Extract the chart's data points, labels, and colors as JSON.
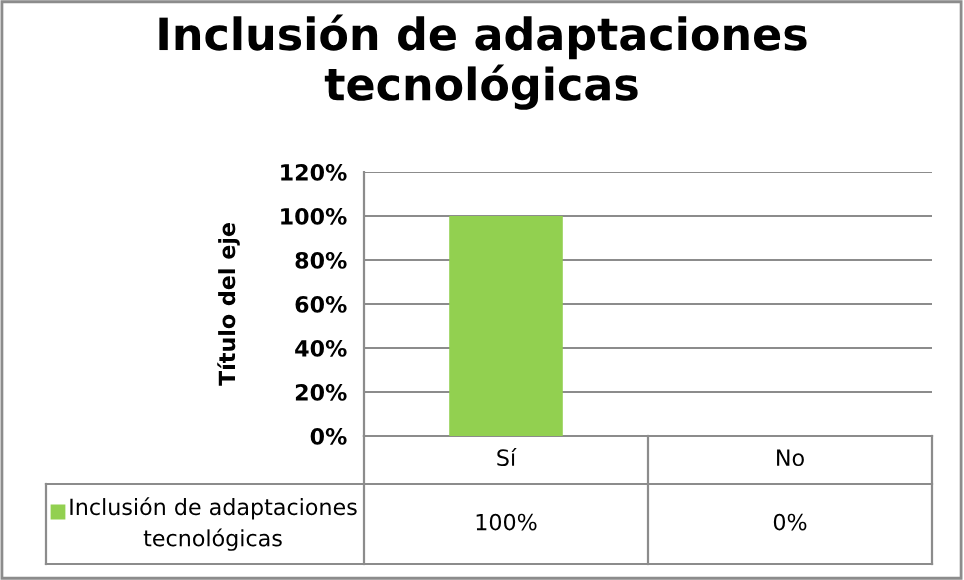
{
  "chart_data": {
    "type": "bar",
    "title": "Inclusión de adaptaciones\ntecnológicas",
    "ylabel": "Título del eje",
    "categories": [
      "Sí",
      "No"
    ],
    "series": [
      {
        "name": "Inclusión de adaptaciones\ntecnológicas",
        "color": "#92d050",
        "values": [
          100,
          0
        ]
      }
    ],
    "ylim": [
      0,
      120
    ],
    "yticks": [
      {
        "value": 0,
        "label": "0%"
      },
      {
        "value": 20,
        "label": "20%"
      },
      {
        "value": 40,
        "label": "40%"
      },
      {
        "value": 60,
        "label": "60%"
      },
      {
        "value": 80,
        "label": "80%"
      },
      {
        "value": 100,
        "label": "100%"
      },
      {
        "value": 120,
        "label": "120%"
      }
    ],
    "value_labels": [
      [
        "100%",
        "0%"
      ]
    ],
    "grid": "y",
    "legend": "bottom"
  }
}
